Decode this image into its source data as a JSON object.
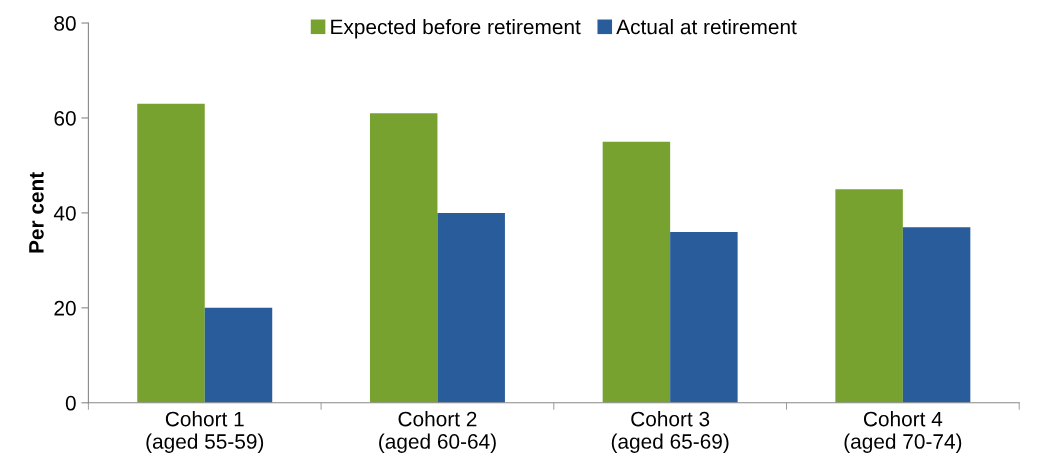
{
  "chart_data": {
    "type": "bar",
    "ylabel": "Per cent",
    "categories": [
      "Cohort 1\n(aged 55-59)",
      "Cohort 2\n(aged 60-64)",
      "Cohort 3\n(aged 65-69)",
      "Cohort 4\n(aged 70-74)"
    ],
    "series": [
      {
        "name": "Expected before retirement",
        "color": "#77a22f",
        "values": [
          63,
          61,
          55,
          45
        ]
      },
      {
        "name": "Actual at retirement",
        "color": "#285c9b",
        "values": [
          20,
          40,
          36,
          37
        ]
      }
    ],
    "ylim": [
      0,
      80
    ],
    "yticks": [
      0,
      20,
      40,
      60,
      80
    ],
    "grid": false,
    "legend": "top"
  }
}
